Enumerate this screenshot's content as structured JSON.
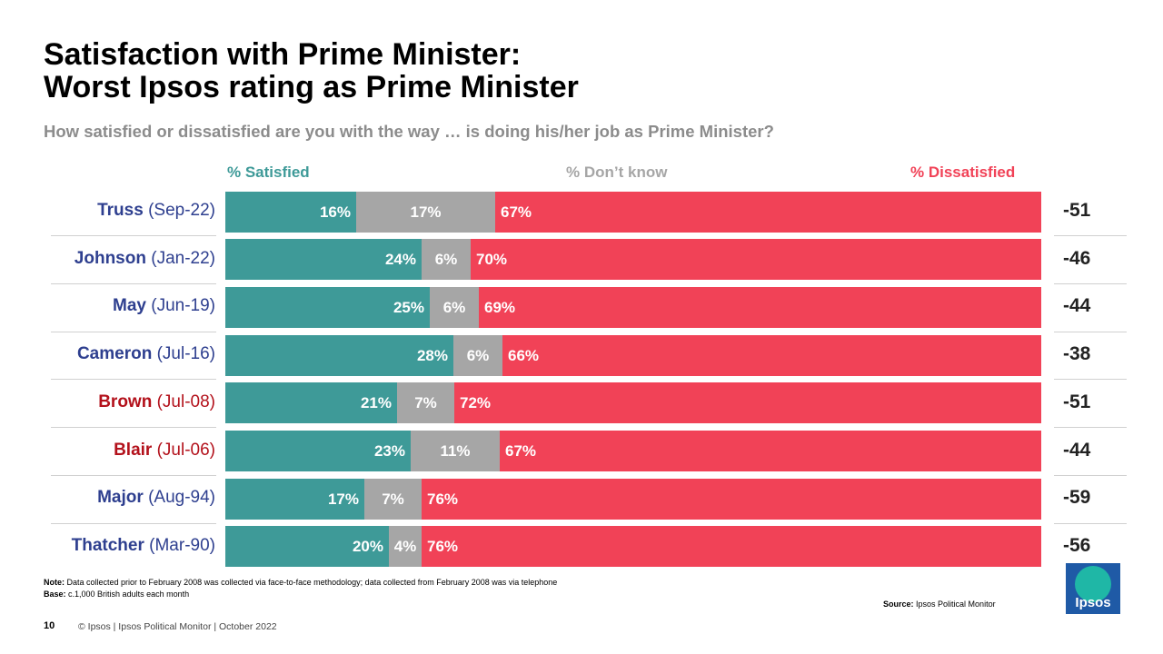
{
  "title_line1": "Satisfaction with Prime Minister:",
  "title_line2": "Worst Ipsos rating as Prime Minister",
  "subtitle": "How satisfied or dissatisfied are you with the way … is doing his/her job as Prime Minister?",
  "legend": {
    "satisfied": "% Satisfied",
    "dont_know": "% Don’t know",
    "dissatisfied": "% Dissatisfied"
  },
  "colors": {
    "satisfied": "#3e9a98",
    "dont_know": "#a6a6a6",
    "dissatisfied": "#f14257",
    "conservative": "#2e3f8f",
    "labour": "#b3111b"
  },
  "chart_data": {
    "type": "bar",
    "stacked": true,
    "orientation": "horizontal",
    "title": "Satisfaction with Prime Minister: Worst Ipsos rating as Prime Minister",
    "series_names": [
      "% Satisfied",
      "% Don’t know",
      "% Dissatisfied"
    ],
    "rows": [
      {
        "name": "Truss",
        "date": "(Sep-22)",
        "party": "conservative",
        "satisfied": 16,
        "dont_know": 17,
        "dissatisfied": 67,
        "net": "-51"
      },
      {
        "name": "Johnson",
        "date": "(Jan-22)",
        "party": "conservative",
        "satisfied": 24,
        "dont_know": 6,
        "dissatisfied": 70,
        "net": "-46"
      },
      {
        "name": "May",
        "date": "(Jun-19)",
        "party": "conservative",
        "satisfied": 25,
        "dont_know": 6,
        "dissatisfied": 69,
        "net": "-44"
      },
      {
        "name": "Cameron",
        "date": "(Jul-16)",
        "party": "conservative",
        "satisfied": 28,
        "dont_know": 6,
        "dissatisfied": 66,
        "net": "-38"
      },
      {
        "name": "Brown",
        "date": "(Jul-08)",
        "party": "labour",
        "satisfied": 21,
        "dont_know": 7,
        "dissatisfied": 72,
        "net": "-51"
      },
      {
        "name": "Blair",
        "date": "(Jul-06)",
        "party": "labour",
        "satisfied": 23,
        "dont_know": 11,
        "dissatisfied": 67,
        "net": "-44"
      },
      {
        "name": "Major",
        "date": "(Aug-94)",
        "party": "conservative",
        "satisfied": 17,
        "dont_know": 7,
        "dissatisfied": 76,
        "net": "-59"
      },
      {
        "name": "Thatcher",
        "date": "(Mar-90)",
        "party": "conservative",
        "satisfied": 20,
        "dont_know": 4,
        "dissatisfied": 76,
        "net": "-56"
      }
    ]
  },
  "note_label": "Note:",
  "note_text": "Data collected prior to February 2008 was collected via face-to-face methodology; data collected from February 2008 was via telephone",
  "base_label": "Base:",
  "base_text": "c.1,000 British adults each month",
  "source_label": "Source:",
  "source_text": "Ipsos Political Monitor",
  "page_number": "10",
  "footer": "© Ipsos | Ipsos Political Monitor | October 2022",
  "logo_text": "Ipsos"
}
